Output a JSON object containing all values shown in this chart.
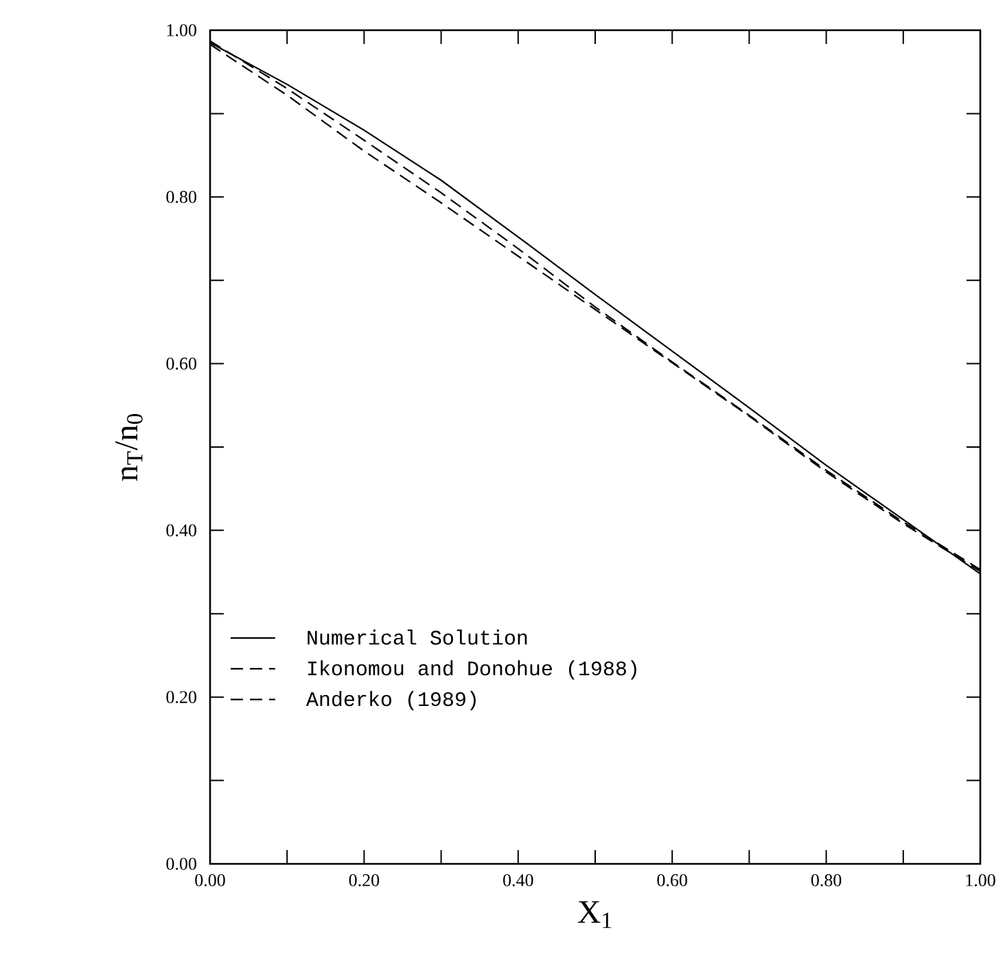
{
  "chart_data": {
    "type": "line",
    "xlabel": "X$_{1}$",
    "ylabel": "n$_{T}$/n$_{0}$",
    "x": [
      0,
      0.1,
      0.2,
      0.3,
      0.4,
      0.5,
      0.6,
      0.7,
      0.8,
      0.9,
      1.0
    ],
    "series": [
      {
        "name": "Numerical Solution",
        "color": "#000000",
        "line_style": "solid",
        "values": [
          0.985,
          0.935,
          0.88,
          0.82,
          0.752,
          0.683,
          0.615,
          0.547,
          0.478,
          0.413,
          0.348
        ]
      },
      {
        "name": "Ikonomou and Donohue (1988)",
        "color": "#000000",
        "line_style": "dashed",
        "values": [
          0.983,
          0.922,
          0.855,
          0.793,
          0.729,
          0.665,
          0.601,
          0.537,
          0.47,
          0.408,
          0.351
        ]
      },
      {
        "name": "Anderko (1989)",
        "color": "#000000",
        "line_style": "dashed",
        "values": [
          0.987,
          0.93,
          0.868,
          0.805,
          0.738,
          0.668,
          0.602,
          0.538,
          0.472,
          0.41,
          0.353
        ]
      }
    ],
    "xlim": [
      0,
      1
    ],
    "ylim": [
      0,
      1
    ],
    "xticks": [
      {
        "value": 0,
        "label": "0.00"
      },
      {
        "value": 0.1,
        "label": null
      },
      {
        "value": 0.2,
        "label": "0.20"
      },
      {
        "value": 0.3,
        "label": null
      },
      {
        "value": 0.4,
        "label": "0.40"
      },
      {
        "value": 0.5,
        "label": null
      },
      {
        "value": 0.6,
        "label": "0.60"
      },
      {
        "value": 0.7,
        "label": null
      },
      {
        "value": 0.8,
        "label": "0.80"
      },
      {
        "value": 0.9,
        "label": null
      },
      {
        "value": 1,
        "label": "1.00"
      }
    ],
    "yticks": [
      {
        "value": 0,
        "label": "0.00"
      },
      {
        "value": 0.1,
        "label": null
      },
      {
        "value": 0.2,
        "label": "0.20"
      },
      {
        "value": 0.3,
        "label": null
      },
      {
        "value": 0.4,
        "label": "0.40"
      },
      {
        "value": 0.5,
        "label": null
      },
      {
        "value": 0.6,
        "label": "0.60"
      },
      {
        "value": 0.7,
        "label": null
      },
      {
        "value": 0.8,
        "label": "0.80"
      },
      {
        "value": 0.9,
        "label": null
      },
      {
        "value": 1,
        "label": "1.00"
      }
    ],
    "grid": false,
    "legend": "bottom left",
    "marker": "none"
  }
}
